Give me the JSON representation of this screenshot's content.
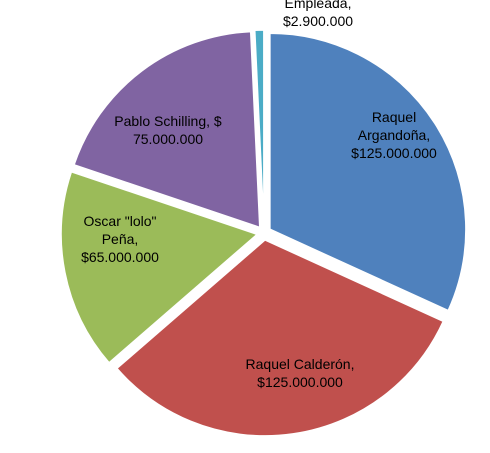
{
  "chart_data": {
    "type": "pie",
    "title": "",
    "slices": [
      {
        "label_lines": [
          "Raquel",
          "Argandoña,",
          "$125.000.000"
        ],
        "name": "Raquel Argandoña",
        "value": 125000000,
        "color": "#4F81BD"
      },
      {
        "label_lines": [
          "Raquel Calderón,",
          "$125.000.000"
        ],
        "name": "Raquel Calderón",
        "value": 125000000,
        "color": "#C0504D"
      },
      {
        "label_lines": [
          "Oscar \"lolo\"",
          "Peña,",
          "$65.000.000"
        ],
        "name": "Oscar \"lolo\" Peña",
        "value": 65000000,
        "color": "#9BBB59"
      },
      {
        "label_lines": [
          "Pablo Schilling, $",
          "75.000.000"
        ],
        "name": "Pablo Schilling",
        "value": 75000000,
        "color": "#8064A2"
      },
      {
        "label_lines": [
          "Empleada,",
          "$2.900.000"
        ],
        "name": "Empleada",
        "value": 2900000,
        "color": "#4BACC6"
      }
    ]
  }
}
